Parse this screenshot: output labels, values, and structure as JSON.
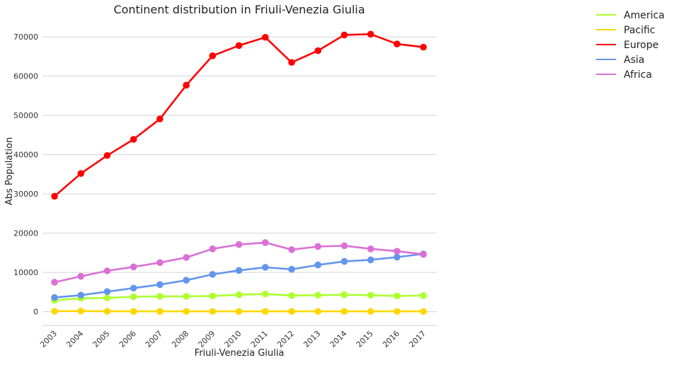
{
  "chart_data": {
    "type": "line",
    "title": "Continent distribution in Friuli-Venezia Giulia",
    "xlabel": "Friuli-Venezia Giulia",
    "ylabel": "Abs Population",
    "x": [
      "2003",
      "2004",
      "2005",
      "2006",
      "2007",
      "2008",
      "2009",
      "2010",
      "2011",
      "2012",
      "2013",
      "2014",
      "2015",
      "2016",
      "2017"
    ],
    "ylim": [
      -3500,
      74000
    ],
    "yticks": [
      0,
      10000,
      20000,
      30000,
      40000,
      50000,
      60000,
      70000
    ],
    "grid": "horizontal",
    "legend_position": "top-right",
    "series": [
      {
        "name": "America",
        "color": "#adff2f",
        "values": [
          2900,
          3400,
          3500,
          3800,
          3900,
          3900,
          4000,
          4300,
          4500,
          4100,
          4200,
          4300,
          4200,
          4000,
          4100
        ]
      },
      {
        "name": "Pacific",
        "color": "#ffd700",
        "values": [
          100,
          150,
          80,
          70,
          70,
          60,
          60,
          60,
          60,
          60,
          60,
          60,
          60,
          60,
          60
        ]
      },
      {
        "name": "Europe",
        "color": "#ff0000",
        "values": [
          29400,
          35200,
          39800,
          43900,
          49100,
          57700,
          65200,
          67800,
          69900,
          63500,
          66500,
          70500,
          70700,
          68200,
          67400
        ]
      },
      {
        "name": "Asia",
        "color": "#6495ed",
        "values": [
          3600,
          4200,
          5100,
          6000,
          6900,
          8000,
          9500,
          10500,
          11300,
          10800,
          11900,
          12800,
          13200,
          13900,
          14700
        ]
      },
      {
        "name": "Africa",
        "color": "#da70d6",
        "values": [
          7500,
          9000,
          10400,
          11400,
          12500,
          13800,
          16000,
          17100,
          17600,
          15800,
          16600,
          16800,
          16000,
          15400,
          14600
        ]
      }
    ]
  }
}
